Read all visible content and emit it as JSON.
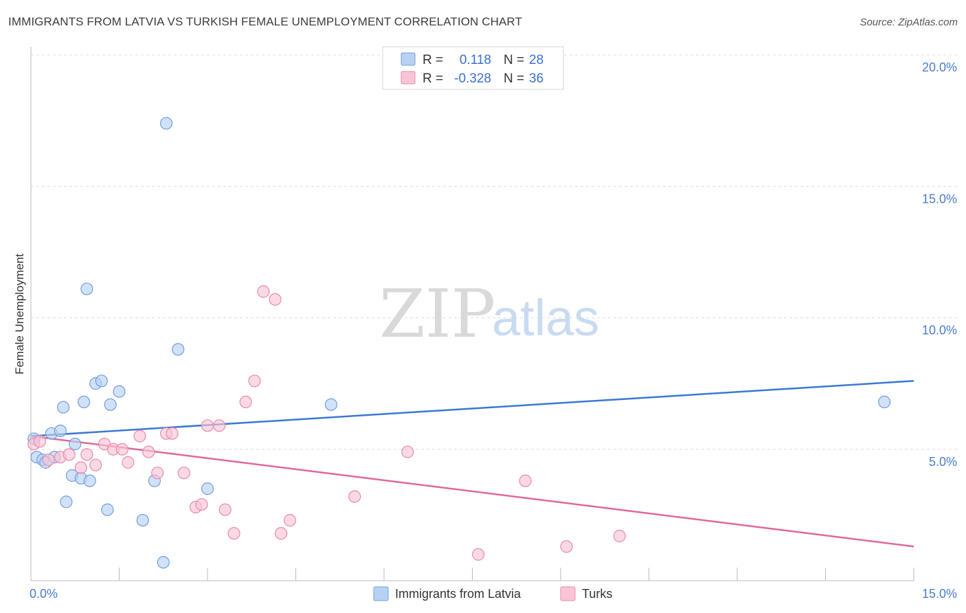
{
  "title": "IMMIGRANTS FROM LATVIA VS TURKISH FEMALE UNEMPLOYMENT CORRELATION CHART",
  "source": "Source: ZipAtlas.com",
  "watermark": {
    "zip": "ZIP",
    "atlas": "atlas"
  },
  "legend": {
    "r_label": "R =",
    "n_label": "N =",
    "series": [
      {
        "r": "0.118",
        "n": "28",
        "fill": "#b8d1f3",
        "stroke": "#6f9ee0"
      },
      {
        "r": "-0.328",
        "n": "36",
        "fill": "#f8c5d6",
        "stroke": "#e98aab"
      }
    ]
  },
  "chart_data": {
    "type": "scatter",
    "title": "IMMIGRANTS FROM LATVIA VS TURKISH FEMALE UNEMPLOYMENT CORRELATION CHART",
    "xlabel": "",
    "ylabel": "Female Unemployment",
    "xlim": [
      0,
      15
    ],
    "ylim": [
      0,
      20
    ],
    "x_tick_labels": [
      "0.0%",
      "15.0%"
    ],
    "y_ticks": [
      5,
      10,
      15,
      20
    ],
    "y_tick_labels": [
      "5.0%",
      "10.0%",
      "15.0%",
      "20.0%"
    ],
    "grid": true,
    "legend_position": "top-center",
    "series": [
      {
        "name": "Immigrants from Latvia",
        "color": "#3a78d4",
        "fill": "#b8d1f3",
        "stroke": "#6f9ee0",
        "trend": {
          "x": [
            0,
            15
          ],
          "y": [
            5.5,
            7.6
          ]
        },
        "points": [
          {
            "x": 0.05,
            "y": 5.4
          },
          {
            "x": 0.1,
            "y": 4.7
          },
          {
            "x": 0.2,
            "y": 4.6
          },
          {
            "x": 0.25,
            "y": 4.5
          },
          {
            "x": 0.35,
            "y": 5.6
          },
          {
            "x": 0.4,
            "y": 4.7
          },
          {
            "x": 0.5,
            "y": 5.7
          },
          {
            "x": 0.55,
            "y": 6.6
          },
          {
            "x": 0.6,
            "y": 3.0
          },
          {
            "x": 0.7,
            "y": 4.0
          },
          {
            "x": 0.75,
            "y": 5.2
          },
          {
            "x": 0.85,
            "y": 3.9
          },
          {
            "x": 0.9,
            "y": 6.8
          },
          {
            "x": 0.95,
            "y": 11.1
          },
          {
            "x": 1.0,
            "y": 3.8
          },
          {
            "x": 1.1,
            "y": 7.5
          },
          {
            "x": 1.2,
            "y": 7.6
          },
          {
            "x": 1.3,
            "y": 2.7
          },
          {
            "x": 1.35,
            "y": 6.7
          },
          {
            "x": 1.5,
            "y": 7.2
          },
          {
            "x": 1.9,
            "y": 2.3
          },
          {
            "x": 2.1,
            "y": 3.8
          },
          {
            "x": 2.25,
            "y": 0.7
          },
          {
            "x": 2.3,
            "y": 17.4
          },
          {
            "x": 2.5,
            "y": 8.8
          },
          {
            "x": 3.0,
            "y": 3.5
          },
          {
            "x": 5.1,
            "y": 6.7
          },
          {
            "x": 14.5,
            "y": 6.8
          }
        ]
      },
      {
        "name": "Turks",
        "color": "#e0679a",
        "fill": "#f8c5d6",
        "stroke": "#e98aab",
        "trend": {
          "x": [
            0,
            15
          ],
          "y": [
            5.5,
            1.3
          ]
        },
        "points": [
          {
            "x": 0.05,
            "y": 5.2
          },
          {
            "x": 0.15,
            "y": 5.3
          },
          {
            "x": 0.3,
            "y": 4.6
          },
          {
            "x": 0.5,
            "y": 4.7
          },
          {
            "x": 0.65,
            "y": 4.8
          },
          {
            "x": 0.85,
            "y": 4.3
          },
          {
            "x": 0.95,
            "y": 4.8
          },
          {
            "x": 1.1,
            "y": 4.4
          },
          {
            "x": 1.25,
            "y": 5.2
          },
          {
            "x": 1.4,
            "y": 5.0
          },
          {
            "x": 1.55,
            "y": 5.0
          },
          {
            "x": 1.65,
            "y": 4.5
          },
          {
            "x": 1.85,
            "y": 5.5
          },
          {
            "x": 2.0,
            "y": 4.9
          },
          {
            "x": 2.15,
            "y": 4.1
          },
          {
            "x": 2.3,
            "y": 5.6
          },
          {
            "x": 2.4,
            "y": 5.6
          },
          {
            "x": 2.6,
            "y": 4.1
          },
          {
            "x": 2.8,
            "y": 2.8
          },
          {
            "x": 2.9,
            "y": 2.9
          },
          {
            "x": 3.0,
            "y": 5.9
          },
          {
            "x": 3.2,
            "y": 5.9
          },
          {
            "x": 3.3,
            "y": 2.7
          },
          {
            "x": 3.45,
            "y": 1.8
          },
          {
            "x": 3.65,
            "y": 6.8
          },
          {
            "x": 3.8,
            "y": 7.6
          },
          {
            "x": 3.95,
            "y": 11.0
          },
          {
            "x": 4.15,
            "y": 10.7
          },
          {
            "x": 4.25,
            "y": 1.8
          },
          {
            "x": 4.4,
            "y": 2.3
          },
          {
            "x": 5.5,
            "y": 3.2
          },
          {
            "x": 6.4,
            "y": 4.9
          },
          {
            "x": 7.6,
            "y": 1.0
          },
          {
            "x": 8.4,
            "y": 3.8
          },
          {
            "x": 9.1,
            "y": 1.3
          },
          {
            "x": 10.0,
            "y": 1.7
          }
        ]
      }
    ]
  }
}
